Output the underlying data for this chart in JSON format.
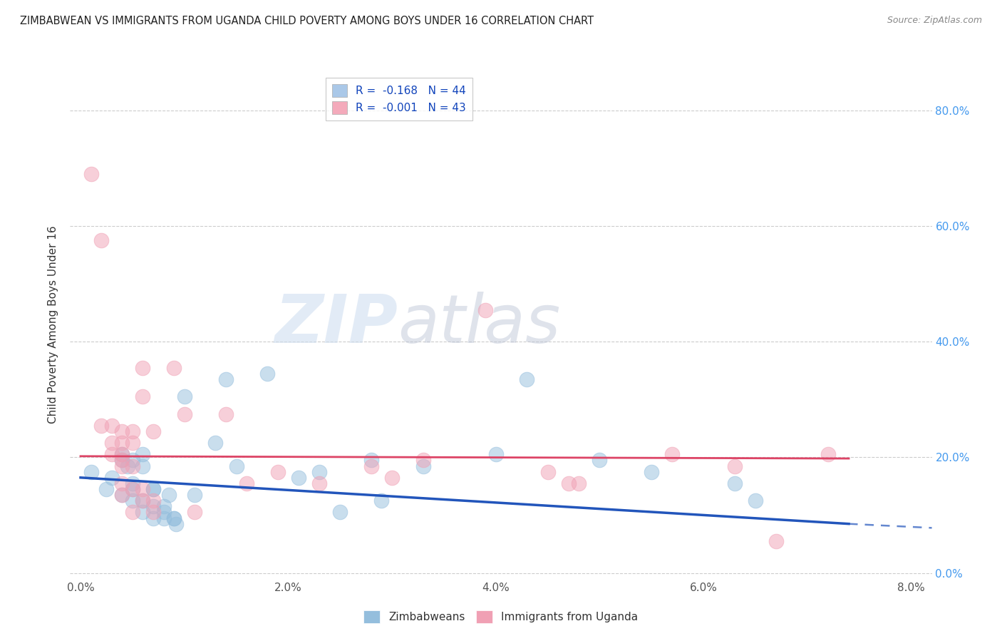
{
  "title": "ZIMBABWEAN VS IMMIGRANTS FROM UGANDA CHILD POVERTY AMONG BOYS UNDER 16 CORRELATION CHART",
  "source": "Source: ZipAtlas.com",
  "ylabel": "Child Poverty Among Boys Under 16",
  "x_ticks": [
    0.0,
    0.02,
    0.04,
    0.06,
    0.08
  ],
  "y_ticks": [
    0.0,
    0.2,
    0.4,
    0.6,
    0.8
  ],
  "y_tick_labels": [
    "0.0%",
    "20.0%",
    "40.0%",
    "60.0%",
    "80.0%"
  ],
  "xlim": [
    -0.001,
    0.082
  ],
  "ylim": [
    -0.01,
    0.87
  ],
  "legend_entries": [
    {
      "label": "R =  -0.168   N = 44",
      "facecolor": "#aac8e8"
    },
    {
      "label": "R =  -0.001   N = 43",
      "facecolor": "#f4aabb"
    }
  ],
  "legend_labels_bottom": [
    "Zimbabweans",
    "Immigrants from Uganda"
  ],
  "zim_color": "#94bedd",
  "uga_color": "#f0a0b4",
  "trend_zim_color": "#2255bb",
  "trend_uga_color": "#dd4466",
  "watermark_zip": "ZIP",
  "watermark_atlas": "atlas",
  "zim_points": [
    [
      0.001,
      0.175
    ],
    [
      0.0025,
      0.145
    ],
    [
      0.003,
      0.165
    ],
    [
      0.004,
      0.135
    ],
    [
      0.004,
      0.205
    ],
    [
      0.004,
      0.195
    ],
    [
      0.0045,
      0.185
    ],
    [
      0.005,
      0.125
    ],
    [
      0.005,
      0.145
    ],
    [
      0.005,
      0.155
    ],
    [
      0.005,
      0.195
    ],
    [
      0.006,
      0.205
    ],
    [
      0.006,
      0.185
    ],
    [
      0.006,
      0.125
    ],
    [
      0.006,
      0.105
    ],
    [
      0.007,
      0.095
    ],
    [
      0.007,
      0.115
    ],
    [
      0.007,
      0.145
    ],
    [
      0.007,
      0.145
    ],
    [
      0.008,
      0.095
    ],
    [
      0.008,
      0.105
    ],
    [
      0.008,
      0.115
    ],
    [
      0.0085,
      0.135
    ],
    [
      0.009,
      0.095
    ],
    [
      0.009,
      0.095
    ],
    [
      0.0092,
      0.085
    ],
    [
      0.01,
      0.305
    ],
    [
      0.011,
      0.135
    ],
    [
      0.013,
      0.225
    ],
    [
      0.014,
      0.335
    ],
    [
      0.015,
      0.185
    ],
    [
      0.018,
      0.345
    ],
    [
      0.021,
      0.165
    ],
    [
      0.023,
      0.175
    ],
    [
      0.025,
      0.105
    ],
    [
      0.028,
      0.195
    ],
    [
      0.029,
      0.125
    ],
    [
      0.033,
      0.185
    ],
    [
      0.04,
      0.205
    ],
    [
      0.043,
      0.335
    ],
    [
      0.05,
      0.195
    ],
    [
      0.055,
      0.175
    ],
    [
      0.063,
      0.155
    ],
    [
      0.065,
      0.125
    ]
  ],
  "uganda_points": [
    [
      0.001,
      0.69
    ],
    [
      0.002,
      0.575
    ],
    [
      0.002,
      0.255
    ],
    [
      0.003,
      0.255
    ],
    [
      0.003,
      0.225
    ],
    [
      0.003,
      0.205
    ],
    [
      0.004,
      0.245
    ],
    [
      0.004,
      0.225
    ],
    [
      0.004,
      0.205
    ],
    [
      0.004,
      0.195
    ],
    [
      0.004,
      0.185
    ],
    [
      0.004,
      0.155
    ],
    [
      0.004,
      0.135
    ],
    [
      0.005,
      0.245
    ],
    [
      0.005,
      0.225
    ],
    [
      0.005,
      0.185
    ],
    [
      0.005,
      0.145
    ],
    [
      0.005,
      0.105
    ],
    [
      0.006,
      0.355
    ],
    [
      0.006,
      0.305
    ],
    [
      0.006,
      0.145
    ],
    [
      0.006,
      0.125
    ],
    [
      0.007,
      0.245
    ],
    [
      0.007,
      0.125
    ],
    [
      0.007,
      0.105
    ],
    [
      0.009,
      0.355
    ],
    [
      0.01,
      0.275
    ],
    [
      0.011,
      0.105
    ],
    [
      0.014,
      0.275
    ],
    [
      0.016,
      0.155
    ],
    [
      0.019,
      0.175
    ],
    [
      0.023,
      0.155
    ],
    [
      0.028,
      0.185
    ],
    [
      0.03,
      0.165
    ],
    [
      0.033,
      0.195
    ],
    [
      0.039,
      0.455
    ],
    [
      0.045,
      0.175
    ],
    [
      0.047,
      0.155
    ],
    [
      0.048,
      0.155
    ],
    [
      0.057,
      0.205
    ],
    [
      0.063,
      0.185
    ],
    [
      0.067,
      0.055
    ],
    [
      0.072,
      0.205
    ]
  ],
  "zim_trend": [
    0.0,
    0.165,
    0.074,
    0.085
  ],
  "uga_trend": [
    0.0,
    0.202,
    0.074,
    0.198
  ],
  "zim_dash": [
    0.074,
    0.085,
    0.082,
    0.078
  ],
  "grid_color": "#cccccc",
  "grid_style": "--"
}
